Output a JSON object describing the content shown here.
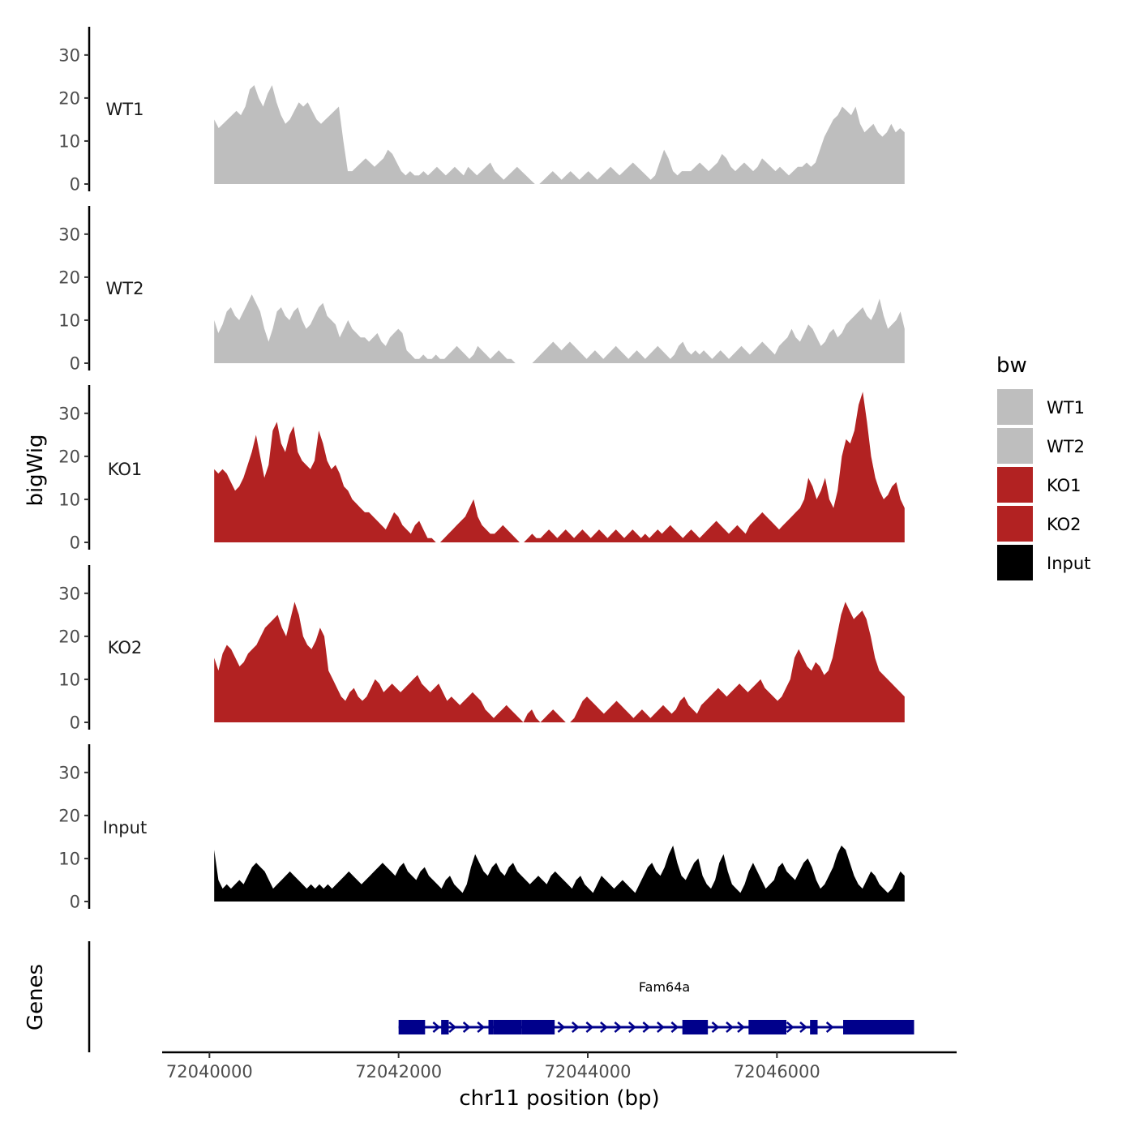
{
  "chart_data": {
    "type": "area",
    "ylabel": "bigWig",
    "xlabel": "chr11 position (bp)",
    "genes_label": "Genes",
    "ylim": [
      0,
      36
    ],
    "yticks": [
      0,
      10,
      20,
      30
    ],
    "xlim": [
      72039500,
      72047900
    ],
    "xticks": [
      72040000,
      72042000,
      72044000,
      72046000
    ],
    "x_start": 72040050,
    "x_end": 72047350,
    "legend": {
      "title": "bw",
      "entries": [
        {
          "label": "WT1",
          "color": "#bebebe"
        },
        {
          "label": "WT2",
          "color": "#bebebe"
        },
        {
          "label": "KO1",
          "color": "#b22222"
        },
        {
          "label": "KO2",
          "color": "#b22222"
        },
        {
          "label": "Input",
          "color": "#000000"
        }
      ]
    },
    "series": [
      {
        "name": "WT1",
        "color": "#bebebe",
        "values": [
          15,
          13,
          14,
          15,
          16,
          17,
          16,
          18,
          22,
          23,
          20,
          18,
          21,
          23,
          19,
          16,
          14,
          15,
          17,
          19,
          18,
          19,
          17,
          15,
          14,
          15,
          16,
          17,
          18,
          10,
          3,
          3,
          4,
          5,
          6,
          5,
          4,
          5,
          6,
          8,
          7,
          5,
          3,
          2,
          3,
          2,
          2,
          3,
          2,
          3,
          4,
          3,
          2,
          3,
          4,
          3,
          2,
          4,
          3,
          2,
          3,
          4,
          5,
          3,
          2,
          1,
          2,
          3,
          4,
          3,
          2,
          1,
          0,
          0,
          1,
          2,
          3,
          2,
          1,
          2,
          3,
          2,
          1,
          2,
          3,
          2,
          1,
          2,
          3,
          4,
          3,
          2,
          3,
          4,
          5,
          4,
          3,
          2,
          1,
          2,
          5,
          8,
          6,
          3,
          2,
          3,
          3,
          3,
          4,
          5,
          4,
          3,
          4,
          5,
          7,
          6,
          4,
          3,
          4,
          5,
          4,
          3,
          4,
          6,
          5,
          4,
          3,
          4,
          3,
          2,
          3,
          4,
          4,
          5,
          4,
          5,
          8,
          11,
          13,
          15,
          16,
          18,
          17,
          16,
          18,
          14,
          12,
          13,
          14,
          12,
          11,
          12,
          14,
          12,
          13,
          12
        ]
      },
      {
        "name": "WT2",
        "color": "#bebebe",
        "values": [
          10,
          7,
          9,
          12,
          13,
          11,
          10,
          12,
          14,
          16,
          14,
          12,
          8,
          5,
          8,
          12,
          13,
          11,
          10,
          12,
          13,
          10,
          8,
          9,
          11,
          13,
          14,
          11,
          10,
          9,
          6,
          8,
          10,
          8,
          7,
          6,
          6,
          5,
          6,
          7,
          5,
          4,
          6,
          7,
          8,
          7,
          3,
          2,
          1,
          1,
          2,
          1,
          1,
          2,
          1,
          1,
          2,
          3,
          4,
          3,
          2,
          1,
          2,
          4,
          3,
          2,
          1,
          2,
          3,
          2,
          1,
          1,
          0,
          0,
          0,
          0,
          0,
          1,
          2,
          3,
          4,
          5,
          4,
          3,
          4,
          5,
          4,
          3,
          2,
          1,
          2,
          3,
          2,
          1,
          2,
          3,
          4,
          3,
          2,
          1,
          2,
          3,
          2,
          1,
          2,
          3,
          4,
          3,
          2,
          1,
          2,
          4,
          5,
          3,
          2,
          3,
          2,
          3,
          2,
          1,
          2,
          3,
          2,
          1,
          2,
          3,
          4,
          3,
          2,
          3,
          4,
          5,
          4,
          3,
          2,
          4,
          5,
          6,
          8,
          6,
          5,
          7,
          9,
          8,
          6,
          4,
          5,
          7,
          8,
          6,
          7,
          9,
          10,
          11,
          12,
          13,
          11,
          10,
          12,
          15,
          11,
          8,
          9,
          10,
          12,
          8
        ]
      },
      {
        "name": "KO1",
        "color": "#b22222",
        "values": [
          17,
          16,
          17,
          16,
          14,
          12,
          13,
          15,
          18,
          21,
          25,
          20,
          15,
          18,
          26,
          28,
          23,
          21,
          25,
          27,
          21,
          19,
          18,
          17,
          19,
          26,
          23,
          19,
          17,
          18,
          16,
          13,
          12,
          10,
          9,
          8,
          7,
          7,
          6,
          5,
          4,
          3,
          5,
          7,
          6,
          4,
          3,
          2,
          4,
          5,
          3,
          1,
          1,
          0,
          0,
          1,
          2,
          3,
          4,
          5,
          6,
          8,
          10,
          6,
          4,
          3,
          2,
          2,
          3,
          4,
          3,
          2,
          1,
          0,
          0,
          1,
          2,
          1,
          1,
          2,
          3,
          2,
          1,
          2,
          3,
          2,
          1,
          2,
          3,
          2,
          1,
          2,
          3,
          2,
          1,
          2,
          3,
          2,
          1,
          2,
          3,
          2,
          1,
          2,
          1,
          2,
          3,
          2,
          3,
          4,
          3,
          2,
          1,
          2,
          3,
          2,
          1,
          2,
          3,
          4,
          5,
          4,
          3,
          2,
          3,
          4,
          3,
          2,
          4,
          5,
          6,
          7,
          6,
          5,
          4,
          3,
          4,
          5,
          6,
          7,
          8,
          10,
          15,
          13,
          10,
          12,
          15,
          10,
          8,
          12,
          20,
          24,
          23,
          26,
          32,
          35,
          28,
          20,
          15,
          12,
          10,
          11,
          13,
          14,
          10,
          8
        ]
      },
      {
        "name": "KO2",
        "color": "#b22222",
        "values": [
          15,
          12,
          16,
          18,
          17,
          15,
          13,
          14,
          16,
          17,
          18,
          20,
          22,
          23,
          24,
          25,
          22,
          20,
          24,
          28,
          25,
          20,
          18,
          17,
          19,
          22,
          20,
          12,
          10,
          8,
          6,
          5,
          7,
          8,
          6,
          5,
          6,
          8,
          10,
          9,
          7,
          8,
          9,
          8,
          7,
          8,
          9,
          10,
          11,
          9,
          8,
          7,
          8,
          9,
          7,
          5,
          6,
          5,
          4,
          5,
          6,
          7,
          6,
          5,
          3,
          2,
          1,
          2,
          3,
          4,
          3,
          2,
          1,
          0,
          2,
          3,
          1,
          0,
          1,
          2,
          3,
          2,
          1,
          0,
          0,
          1,
          3,
          5,
          6,
          5,
          4,
          3,
          2,
          3,
          4,
          5,
          4,
          3,
          2,
          1,
          2,
          3,
          2,
          1,
          2,
          3,
          4,
          3,
          2,
          3,
          5,
          6,
          4,
          3,
          2,
          4,
          5,
          6,
          7,
          8,
          7,
          6,
          7,
          8,
          9,
          8,
          7,
          8,
          9,
          10,
          8,
          7,
          6,
          5,
          6,
          8,
          10,
          15,
          17,
          15,
          13,
          12,
          14,
          13,
          11,
          12,
          15,
          20,
          25,
          28,
          26,
          24,
          25,
          26,
          24,
          20,
          15,
          12,
          11,
          10,
          9,
          8,
          7,
          6
        ]
      },
      {
        "name": "Input",
        "color": "#000000",
        "values": [
          12,
          5,
          3,
          4,
          3,
          4,
          5,
          4,
          6,
          8,
          9,
          8,
          7,
          5,
          3,
          4,
          5,
          6,
          7,
          6,
          5,
          4,
          3,
          4,
          3,
          4,
          3,
          4,
          3,
          4,
          5,
          6,
          7,
          6,
          5,
          4,
          5,
          6,
          7,
          8,
          9,
          8,
          7,
          6,
          8,
          9,
          7,
          6,
          5,
          7,
          8,
          6,
          5,
          4,
          3,
          5,
          6,
          4,
          3,
          2,
          4,
          8,
          11,
          9,
          7,
          6,
          8,
          9,
          7,
          6,
          8,
          9,
          7,
          6,
          5,
          4,
          5,
          6,
          5,
          4,
          6,
          7,
          6,
          5,
          4,
          3,
          5,
          6,
          4,
          3,
          2,
          4,
          6,
          5,
          4,
          3,
          4,
          5,
          4,
          3,
          2,
          4,
          6,
          8,
          9,
          7,
          6,
          8,
          11,
          13,
          9,
          6,
          5,
          7,
          9,
          10,
          6,
          4,
          3,
          5,
          9,
          11,
          7,
          4,
          3,
          2,
          4,
          7,
          9,
          7,
          5,
          3,
          4,
          5,
          8,
          9,
          7,
          6,
          5,
          7,
          9,
          10,
          8,
          5,
          3,
          4,
          6,
          8,
          11,
          13,
          12,
          9,
          6,
          4,
          3,
          5,
          7,
          6,
          4,
          3,
          2,
          3,
          5,
          7,
          6
        ]
      }
    ],
    "gene": {
      "name": "Fam64a",
      "color": "#00008b",
      "start": 72042000,
      "end": 72047450,
      "strand": "+",
      "exons": [
        [
          72042000,
          72042280
        ],
        [
          72042450,
          72042530
        ],
        [
          72042950,
          72043000
        ],
        [
          72043000,
          72043300
        ],
        [
          72043300,
          72043650
        ],
        [
          72045000,
          72045270
        ],
        [
          72045700,
          72046100
        ],
        [
          72046350,
          72046430
        ],
        [
          72046700,
          72047450
        ]
      ],
      "intron_arrows": [
        72042070,
        72042400,
        72042570,
        72042720,
        72042870,
        72043720,
        72043870,
        72044020,
        72044170,
        72044320,
        72044470,
        72044620,
        72044770,
        72044920,
        72045350,
        72045500,
        72045620,
        72046140,
        72046280,
        72046560
      ]
    }
  }
}
